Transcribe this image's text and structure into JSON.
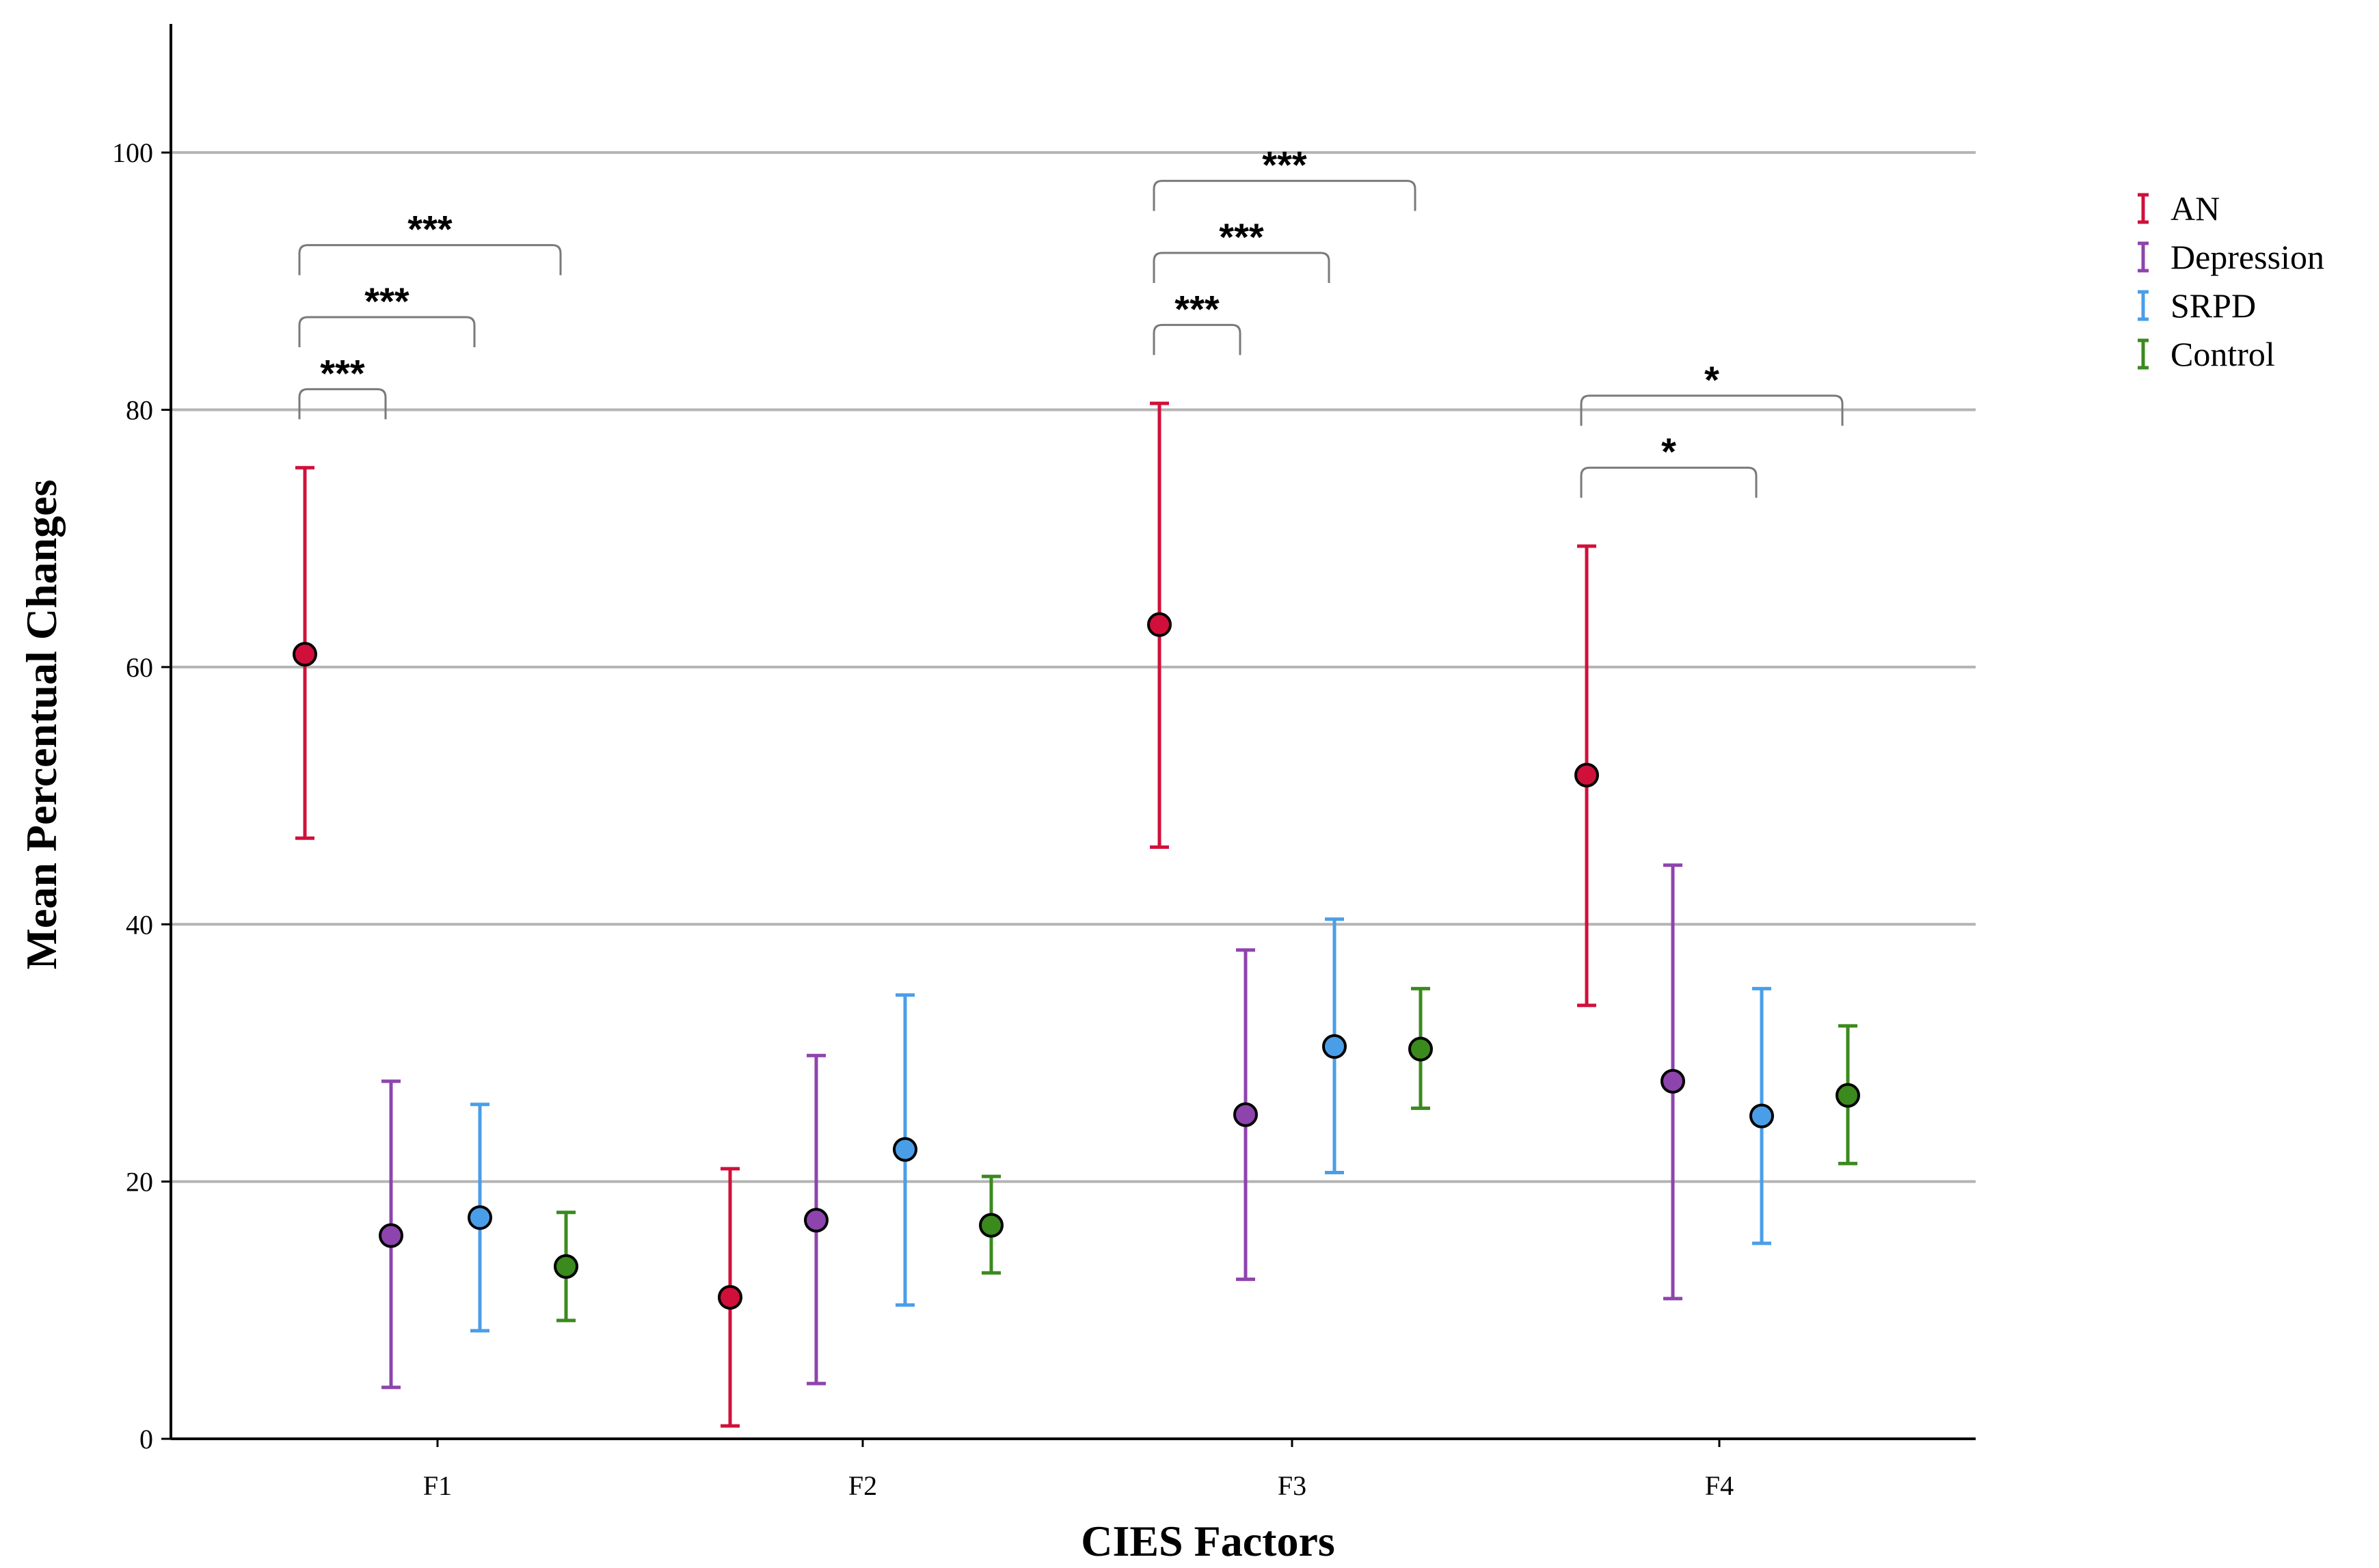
{
  "chart_data": {
    "type": "scatter",
    "title": "",
    "xlabel": "CIES Factors",
    "ylabel": "Mean Percentual Changes",
    "categories": [
      "F1",
      "F2",
      "F3",
      "F4"
    ],
    "ylim": [
      0,
      110
    ],
    "yticks": [
      "0",
      "20",
      "40",
      "60",
      "80",
      "100"
    ],
    "grid": true,
    "legend_position": "right",
    "series": [
      {
        "name": "AN",
        "color": "#d0103a",
        "values": [
          61.0,
          11.0,
          63.3,
          51.6
        ],
        "lower": [
          46.7,
          1.0,
          46.0,
          33.7
        ],
        "upper": [
          75.5,
          21.0,
          80.5,
          69.4
        ]
      },
      {
        "name": "Depression",
        "color": "#8e44ad",
        "values": [
          15.8,
          17.0,
          25.2,
          27.8
        ],
        "lower": [
          4.0,
          4.3,
          12.4,
          10.9
        ],
        "upper": [
          27.8,
          29.8,
          38.0,
          44.6
        ]
      },
      {
        "name": "SRPD",
        "color": "#4a9ee8",
        "values": [
          17.2,
          22.5,
          30.5,
          25.1
        ],
        "lower": [
          8.4,
          10.4,
          20.7,
          15.2
        ],
        "upper": [
          26.0,
          34.5,
          40.4,
          35.0
        ]
      },
      {
        "name": "Control",
        "color": "#3a8a1e",
        "values": [
          13.4,
          16.6,
          30.3,
          26.7
        ],
        "lower": [
          9.2,
          12.9,
          25.7,
          21.4
        ],
        "upper": [
          17.6,
          20.4,
          35.0,
          32.1
        ]
      }
    ],
    "significance": [
      {
        "category": "F1",
        "from": "AN",
        "to": "Depression",
        "label": "***"
      },
      {
        "category": "F1",
        "from": "AN",
        "to": "SRPD",
        "label": "***"
      },
      {
        "category": "F1",
        "from": "AN",
        "to": "Control",
        "label": "***"
      },
      {
        "category": "F3",
        "from": "AN",
        "to": "Depression",
        "label": "***"
      },
      {
        "category": "F3",
        "from": "AN",
        "to": "SRPD",
        "label": "***"
      },
      {
        "category": "F3",
        "from": "AN",
        "to": "Control",
        "label": "***"
      },
      {
        "category": "F4",
        "from": "AN",
        "to": "SRPD",
        "label": "*"
      },
      {
        "category": "F4",
        "from": "AN",
        "to": "Control",
        "label": "*"
      }
    ]
  }
}
